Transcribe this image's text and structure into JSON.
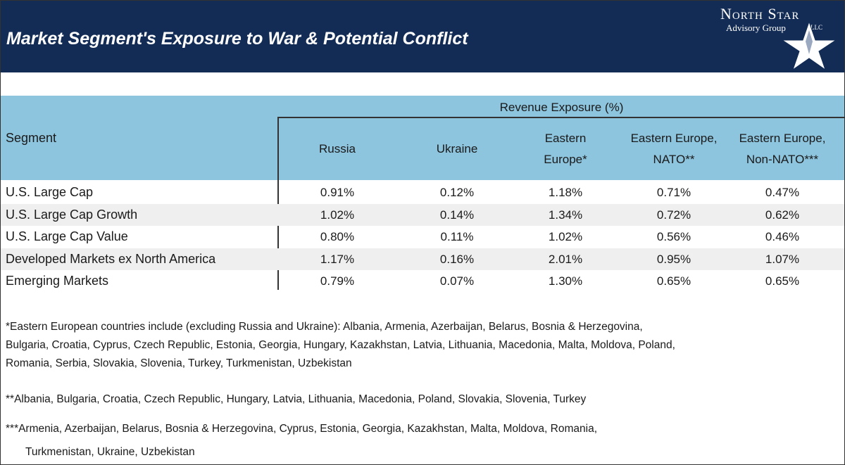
{
  "header": {
    "title": "Market Segment's Exposure to War & Potential Conflict",
    "logo": {
      "name": "North Star",
      "subtitle": "Advisory Group",
      "suffix": "LLC"
    }
  },
  "table": {
    "group_header": "Revenue Exposure (%)",
    "segment_header": "Segment",
    "columns": [
      [
        "Russia"
      ],
      [
        "Ukraine"
      ],
      [
        "Eastern",
        "Europe*"
      ],
      [
        "Eastern Europe,",
        "NATO**"
      ],
      [
        "Eastern Europe,",
        "Non-NATO***"
      ]
    ],
    "rows": [
      [
        "U.S. Large Cap",
        "0.91%",
        "0.12%",
        "1.18%",
        "0.71%",
        "0.47%"
      ],
      [
        "U.S. Large Cap Growth",
        "1.02%",
        "0.14%",
        "1.34%",
        "0.72%",
        "0.62%"
      ],
      [
        "U.S. Large Cap Value",
        "0.80%",
        "0.11%",
        "1.02%",
        "0.56%",
        "0.46%"
      ],
      [
        "Developed Markets ex North America",
        "1.17%",
        "0.16%",
        "2.01%",
        "0.95%",
        "1.07%"
      ],
      [
        "Emerging Markets",
        "0.79%",
        "0.07%",
        "1.30%",
        "0.65%",
        "0.65%"
      ]
    ]
  },
  "footnotes": [
    [
      "*Eastern European countries include (excluding Russia and Ukraine): Albania, Armenia, Azerbaijan, Belarus, Bosnia & Herzegovina,",
      "Bulgaria, Croatia, Cyprus, Czech Republic, Estonia, Georgia, Hungary, Kazakhstan, Latvia, Lithuania, Macedonia, Malta, Moldova, Poland,",
      "Romania, Serbia, Slovakia, Slovenia, Turkey, Turkmenistan, Uzbekistan"
    ],
    [
      "**Albania, Bulgaria, Croatia, Czech Republic, Hungary, Latvia, Lithuania, Macedonia, Poland, Slovakia, Slovenia, Turkey"
    ],
    [
      "***Armenia, Azerbaijan, Belarus, Bosnia & Herzegovina, Cyprus, Estonia, Georgia, Kazakhstan, Malta, Moldova, Romania,",
      "Turkmenistan, Ukraine, Uzbekistan"
    ]
  ]
}
